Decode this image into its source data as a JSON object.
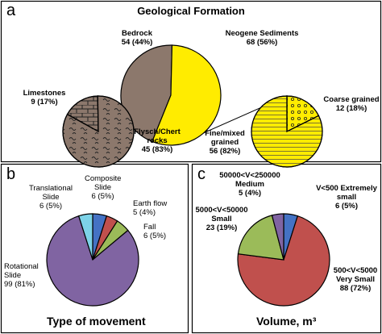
{
  "chart_data": [
    {
      "type": "pie",
      "panel": "a",
      "title": "Geological Formation",
      "categories": [
        "Bedrock",
        "Neogene Sediments"
      ],
      "values": [
        54,
        68
      ],
      "value_labels": [
        "54 (44%)",
        "68 (56%)"
      ],
      "colors": [
        "#8c786c",
        "#ffec00"
      ]
    },
    {
      "type": "pie",
      "categories": [
        "Limestones",
        "Flysch/Chert rocks"
      ],
      "values": [
        9,
        45
      ],
      "value_labels": [
        "9 (17%)",
        "45 (83%)"
      ],
      "colors": [
        "#8c786c",
        "#8c786c"
      ]
    },
    {
      "type": "pie",
      "categories": [
        "Coarse grained",
        "Fine/mixed grained"
      ],
      "values": [
        12,
        56
      ],
      "value_labels": [
        "12 (18%)",
        "56 (82%)"
      ],
      "colors": [
        "#ffec00",
        "#ffec00"
      ]
    },
    {
      "type": "pie",
      "panel": "b",
      "title": "Type of movement",
      "categories": [
        "Composite Slide",
        "Earth flow",
        "Fall",
        "Rotational Slide",
        "Translational Slide"
      ],
      "values": [
        6,
        5,
        6,
        99,
        6
      ],
      "value_labels": [
        "6 (5%)",
        "5 (4%)",
        "6 (5%)",
        "99 (81%)",
        "6 (5%)"
      ],
      "colors": [
        "#4472c4",
        "#c0504d",
        "#9bbb59",
        "#8064a2",
        "#7dd3e8"
      ]
    },
    {
      "type": "pie",
      "panel": "c",
      "title": "Volume, m³",
      "categories": [
        "V<500 Extremely small",
        "500<V<5000 Very Small",
        "5000<V<50000 Small",
        "50000<V<250000 Medium"
      ],
      "values": [
        6,
        88,
        23,
        5
      ],
      "value_labels": [
        "6 (5%)",
        "88 (72%)",
        "23 (19%)",
        "5 (4%)"
      ],
      "colors": [
        "#4472c4",
        "#c0504d",
        "#9bbb59",
        "#8064a2"
      ]
    }
  ]
}
